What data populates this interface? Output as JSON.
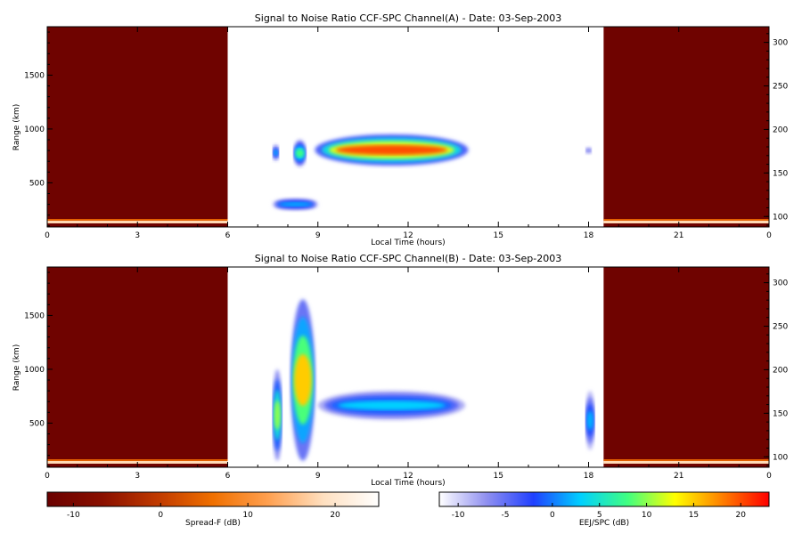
{
  "panels": [
    {
      "title": "Signal to Noise Ratio CCF-SPC Channel(A) - Date: 03-Sep-2003",
      "xlabel": "Local Time (hours)",
      "ylabel": "Range (km)",
      "x_ticks": [
        "0",
        "3",
        "6",
        "9",
        "12",
        "15",
        "18",
        "21",
        "0"
      ],
      "y_ticks_left": [
        "500",
        "1000",
        "1500"
      ],
      "y_ticks_right": [
        "100",
        "150",
        "200",
        "250",
        "300"
      ]
    },
    {
      "title": "Signal to Noise Ratio CCF-SPC Channel(B) - Date: 03-Sep-2003",
      "xlabel": "Local Time (hours)",
      "ylabel": "Range (km)",
      "x_ticks": [
        "0",
        "3",
        "6",
        "9",
        "12",
        "15",
        "18",
        "21",
        "0"
      ],
      "y_ticks_left": [
        "500",
        "1000",
        "1500"
      ],
      "y_ticks_right": [
        "100",
        "150",
        "200",
        "250",
        "300"
      ]
    }
  ],
  "colorbars": [
    {
      "label": "Spread-F (dB)",
      "ticks": [
        "-10",
        "0",
        "10",
        "20"
      ],
      "range": [
        -13,
        25
      ],
      "colors": [
        "#6a0000",
        "#8a1000",
        "#c03a00",
        "#f07000",
        "#ffa050",
        "#ffe0c0",
        "#ffffff"
      ]
    },
    {
      "label": "EEJ/SPC (dB)",
      "ticks": [
        "-10",
        "-5",
        "0",
        "5",
        "10",
        "15",
        "20"
      ],
      "range": [
        -12,
        23
      ],
      "colors": [
        "#ffffff",
        "#9090f0",
        "#2040ff",
        "#00d0ff",
        "#40ff80",
        "#ffff00",
        "#ff8000",
        "#ff0000"
      ]
    }
  ],
  "chart_data": [
    {
      "type": "heatmap",
      "title": "Signal to Noise Ratio CCF-SPC Channel(A) - Date: 03-Sep-2003",
      "xlabel": "Local Time (hours)",
      "ylabel": "Range (km)",
      "xlim": [
        0,
        24
      ],
      "ylim": [
        90,
        1950
      ],
      "right_axis_ylim": [
        88,
        318
      ],
      "spread_f_blocks": [
        {
          "x_range": [
            0,
            6
          ],
          "value_db": -12,
          "colorbar": "Spread-F (dB)"
        },
        {
          "x_range": [
            18.5,
            24
          ],
          "value_db": -12,
          "colorbar": "Spread-F (dB)"
        }
      ],
      "eej_features": [
        {
          "x_range": [
            7.5,
            7.7
          ],
          "y_range": [
            700,
            860
          ],
          "peak_db": 2
        },
        {
          "x_range": [
            8.2,
            8.6
          ],
          "y_range": [
            650,
            900
          ],
          "peak_db": 8
        },
        {
          "x_range": [
            8.9,
            14.0
          ],
          "y_range": [
            660,
            950
          ],
          "peak_db": 20
        },
        {
          "x_range": [
            7.5,
            9.0
          ],
          "y_range": [
            240,
            360
          ],
          "peak_db": 2
        },
        {
          "x_range": [
            17.9,
            18.1
          ],
          "y_range": [
            760,
            840
          ],
          "peak_db": -6
        }
      ]
    },
    {
      "type": "heatmap",
      "title": "Signal to Noise Ratio CCF-SPC Channel(B) - Date: 03-Sep-2003",
      "xlabel": "Local Time (hours)",
      "ylabel": "Range (km)",
      "xlim": [
        0,
        24
      ],
      "ylim": [
        90,
        1950
      ],
      "right_axis_ylim": [
        88,
        318
      ],
      "spread_f_blocks": [
        {
          "x_range": [
            0,
            6
          ],
          "value_db": -12,
          "colorbar": "Spread-F (dB)"
        },
        {
          "x_range": [
            18.5,
            24
          ],
          "value_db": -12,
          "colorbar": "Spread-F (dB)"
        }
      ],
      "eej_features": [
        {
          "x_range": [
            7.5,
            7.8
          ],
          "y_range": [
            150,
            1000
          ],
          "peak_db": 10
        },
        {
          "x_range": [
            8.1,
            8.9
          ],
          "y_range": [
            150,
            1650
          ],
          "peak_db": 15
        },
        {
          "x_range": [
            9.0,
            13.9
          ],
          "y_range": [
            530,
            800
          ],
          "peak_db": 3
        },
        {
          "x_range": [
            17.9,
            18.2
          ],
          "y_range": [
            250,
            800
          ],
          "peak_db": 2
        }
      ]
    }
  ]
}
